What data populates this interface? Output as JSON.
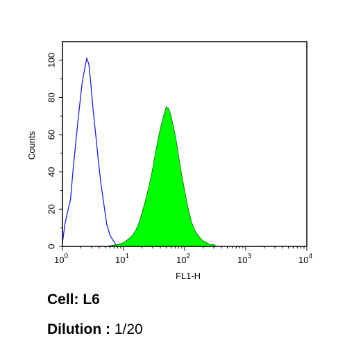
{
  "chart_data": {
    "type": "area",
    "xscale": "log",
    "xlim": [
      1,
      10000
    ],
    "ylim": [
      0,
      110
    ],
    "xlabel": "FL1-H",
    "ylabel": "Counts",
    "x_ticks": [
      {
        "base": "10",
        "exp": "0"
      },
      {
        "base": "10",
        "exp": "1"
      },
      {
        "base": "10",
        "exp": "2"
      },
      {
        "base": "10",
        "exp": "3"
      },
      {
        "base": "10",
        "exp": "4"
      }
    ],
    "y_ticks": [
      "0",
      "20",
      "40",
      "60",
      "80",
      "100"
    ],
    "grid": false,
    "series": [
      {
        "style": "outline",
        "color": "#1a1aff",
        "x": [
          1.0,
          1.1,
          1.2,
          1.35,
          1.5,
          1.7,
          1.9,
          2.1,
          2.3,
          2.5,
          2.7,
          2.9,
          3.2,
          3.5,
          3.9,
          4.3,
          4.8,
          5.3,
          6.0,
          6.8,
          7.5,
          8.5
        ],
        "y": [
          2,
          12,
          18,
          25,
          42,
          60,
          75,
          88,
          95,
          101,
          98,
          88,
          72,
          60,
          45,
          33,
          22,
          12,
          6,
          3,
          1,
          0
        ]
      },
      {
        "style": "filled",
        "color": "#00ff00",
        "x": [
          5.0,
          8.0,
          10.0,
          12.0,
          14.0,
          16.0,
          18.0,
          20.0,
          23.0,
          26.0,
          30.0,
          34.0,
          38.0,
          42.0,
          46.0,
          50.0,
          55.0,
          60.0,
          66.0,
          72.0,
          80.0,
          90.0,
          100.0,
          115.0,
          130.0,
          150.0,
          175.0,
          200.0,
          230.0,
          260.0,
          300.0,
          330.0
        ],
        "y": [
          0,
          1,
          2,
          4,
          6,
          9,
          13,
          18,
          25,
          32,
          42,
          52,
          60,
          66,
          71,
          75,
          74,
          70,
          64,
          58,
          48,
          38,
          30,
          20,
          13,
          8,
          5,
          3,
          2,
          1,
          1,
          0
        ]
      }
    ]
  },
  "captions": {
    "cell": {
      "label": "Cell:",
      "value": "L6"
    },
    "dilution": {
      "label": "Dilution :",
      "value": "1/20"
    }
  }
}
